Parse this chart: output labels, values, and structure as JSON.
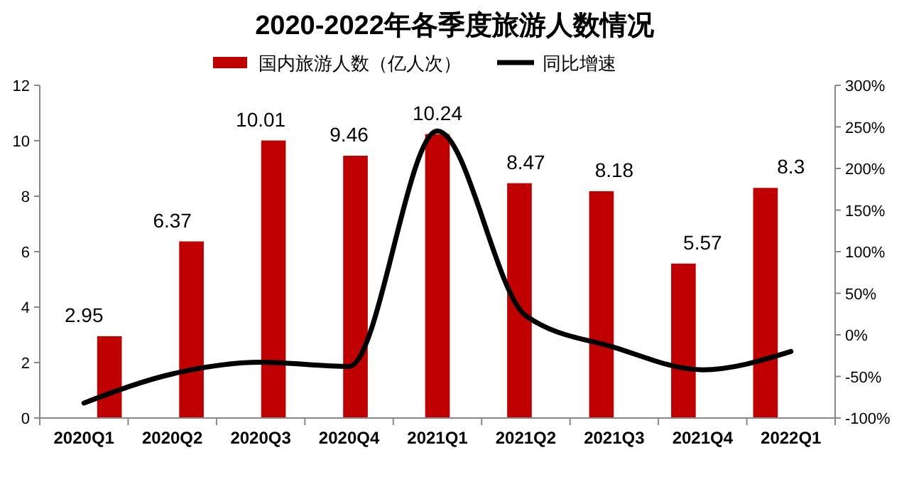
{
  "chart_data": {
    "type": "bar",
    "title": "2020-2022年各季度旅游人数情况",
    "categories": [
      "2020Q1",
      "2020Q2",
      "2020Q3",
      "2020Q4",
      "2021Q1",
      "2021Q2",
      "2021Q3",
      "2021Q4",
      "2022Q1"
    ],
    "series": [
      {
        "name": "国内旅游人数（亿人次）",
        "color": "#c00000",
        "values": [
          2.95,
          6.37,
          10.01,
          9.46,
          10.24,
          8.47,
          8.18,
          5.57,
          8.3
        ],
        "value_labels": [
          "2.95",
          "6.37",
          "10.01",
          "9.46",
          "10.24",
          "8.47",
          "8.18",
          "5.57",
          "8.3"
        ]
      },
      {
        "name": "同比增速",
        "type": "line",
        "axis": "y2",
        "color": "#000000",
        "values": [
          -82,
          -47,
          -33,
          -38,
          245,
          23,
          -15,
          -42,
          -20
        ]
      }
    ],
    "ylim": [
      0,
      12
    ],
    "yticks": [
      0,
      2,
      4,
      6,
      8,
      10,
      12
    ],
    "y2lim": [
      -100,
      300
    ],
    "y2ticks": [
      {
        "value": -100,
        "label": "-100%"
      },
      {
        "value": -50,
        "label": "-50%"
      },
      {
        "value": 0,
        "label": "0%"
      },
      {
        "value": 50,
        "label": "50%"
      },
      {
        "value": 100,
        "label": "100%"
      },
      {
        "value": 150,
        "label": "150%"
      },
      {
        "value": 200,
        "label": "200%"
      },
      {
        "value": 250,
        "label": "250%"
      },
      {
        "value": 300,
        "label": "300%"
      }
    ],
    "legend": "top",
    "grid": false,
    "marker": "none",
    "line_style": "solid"
  }
}
